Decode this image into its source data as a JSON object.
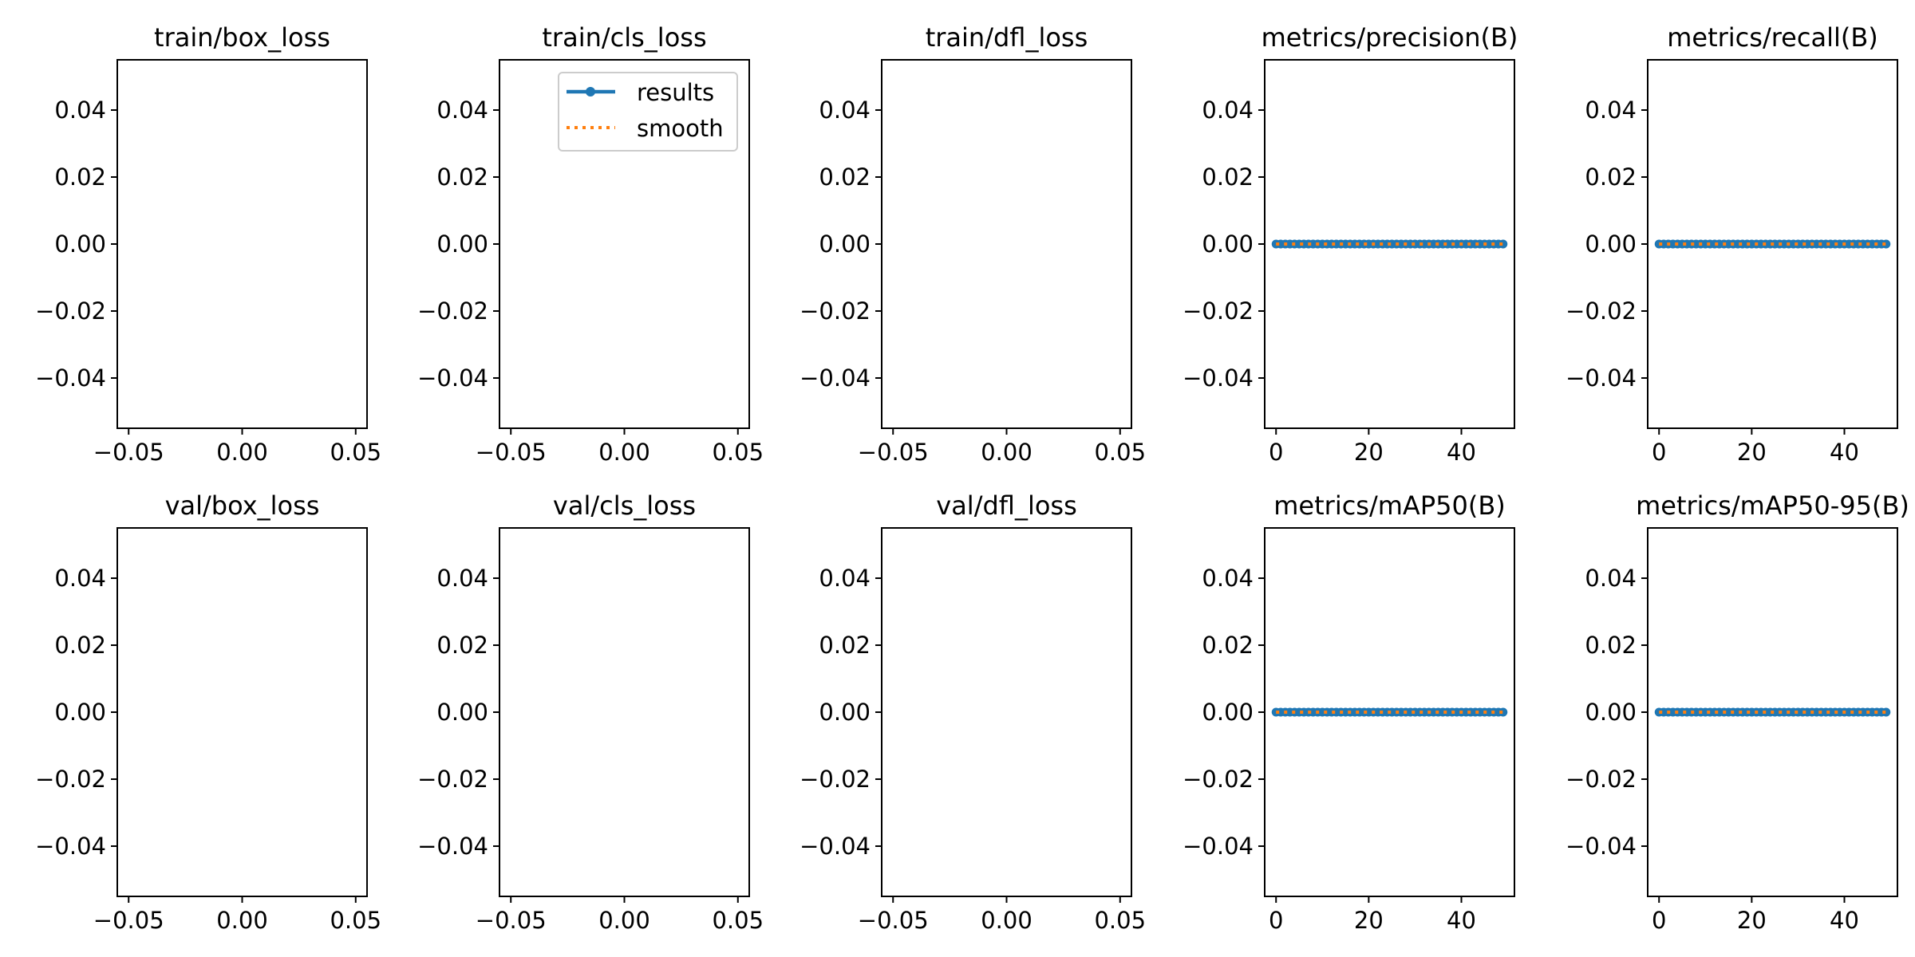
{
  "figure": {
    "panel_count": 10,
    "layout": "2 rows x 5 columns",
    "legend": {
      "location": "upper-right of panel train/cls_loss",
      "entries": [
        {
          "label": "results",
          "color": "#1f77b4",
          "style": "solid line with dot markers"
        },
        {
          "label": "smooth",
          "color": "#ff7f0e",
          "style": "dotted line"
        }
      ]
    }
  },
  "chart_data": [
    {
      "type": "line",
      "title": "train/box_loss",
      "xlim": [
        -0.055,
        0.055
      ],
      "ylim": [
        -0.055,
        0.055
      ],
      "xticks": [
        -0.05,
        0.0,
        0.05
      ],
      "xtick_labels": [
        "−0.05",
        "0.00",
        "0.05"
      ],
      "yticks": [
        0.04,
        0.02,
        0.0,
        -0.02,
        -0.04
      ],
      "ytick_labels": [
        "0.04",
        "0.02",
        "0.00",
        "−0.02",
        "−0.04"
      ],
      "series": []
    },
    {
      "type": "line",
      "title": "train/cls_loss",
      "xlim": [
        -0.055,
        0.055
      ],
      "ylim": [
        -0.055,
        0.055
      ],
      "xticks": [
        -0.05,
        0.0,
        0.05
      ],
      "xtick_labels": [
        "−0.05",
        "0.00",
        "0.05"
      ],
      "yticks": [
        0.04,
        0.02,
        0.0,
        -0.02,
        -0.04
      ],
      "ytick_labels": [
        "0.04",
        "0.02",
        "0.00",
        "−0.02",
        "−0.04"
      ],
      "series": [],
      "has_legend": true
    },
    {
      "type": "line",
      "title": "train/dfl_loss",
      "xlim": [
        -0.055,
        0.055
      ],
      "ylim": [
        -0.055,
        0.055
      ],
      "xticks": [
        -0.05,
        0.0,
        0.05
      ],
      "xtick_labels": [
        "−0.05",
        "0.00",
        "0.05"
      ],
      "yticks": [
        0.04,
        0.02,
        0.0,
        -0.02,
        -0.04
      ],
      "ytick_labels": [
        "0.04",
        "0.02",
        "0.00",
        "−0.02",
        "−0.04"
      ],
      "series": []
    },
    {
      "type": "line",
      "title": "metrics/precision(B)",
      "xlim": [
        -2.45,
        51.45
      ],
      "ylim": [
        -0.055,
        0.055
      ],
      "xticks": [
        0,
        20,
        40
      ],
      "xtick_labels": [
        "0",
        "20",
        "40"
      ],
      "yticks": [
        0.04,
        0.02,
        0.0,
        -0.02,
        -0.04
      ],
      "ytick_labels": [
        "0.04",
        "0.02",
        "0.00",
        "−0.02",
        "−0.04"
      ],
      "x": [
        0,
        1,
        2,
        3,
        4,
        5,
        6,
        7,
        8,
        9,
        10,
        11,
        12,
        13,
        14,
        15,
        16,
        17,
        18,
        19,
        20,
        21,
        22,
        23,
        24,
        25,
        26,
        27,
        28,
        29,
        30,
        31,
        32,
        33,
        34,
        35,
        36,
        37,
        38,
        39,
        40,
        41,
        42,
        43,
        44,
        45,
        46,
        47,
        48,
        49
      ],
      "series": [
        {
          "name": "results",
          "values": [
            0,
            0,
            0,
            0,
            0,
            0,
            0,
            0,
            0,
            0,
            0,
            0,
            0,
            0,
            0,
            0,
            0,
            0,
            0,
            0,
            0,
            0,
            0,
            0,
            0,
            0,
            0,
            0,
            0,
            0,
            0,
            0,
            0,
            0,
            0,
            0,
            0,
            0,
            0,
            0,
            0,
            0,
            0,
            0,
            0,
            0,
            0,
            0,
            0,
            0
          ]
        },
        {
          "name": "smooth",
          "values": [
            0,
            0,
            0,
            0,
            0,
            0,
            0,
            0,
            0,
            0,
            0,
            0,
            0,
            0,
            0,
            0,
            0,
            0,
            0,
            0,
            0,
            0,
            0,
            0,
            0,
            0,
            0,
            0,
            0,
            0,
            0,
            0,
            0,
            0,
            0,
            0,
            0,
            0,
            0,
            0,
            0,
            0,
            0,
            0,
            0,
            0,
            0,
            0,
            0,
            0
          ]
        }
      ]
    },
    {
      "type": "line",
      "title": "metrics/recall(B)",
      "xlim": [
        -2.45,
        51.45
      ],
      "ylim": [
        -0.055,
        0.055
      ],
      "xticks": [
        0,
        20,
        40
      ],
      "xtick_labels": [
        "0",
        "20",
        "40"
      ],
      "yticks": [
        0.04,
        0.02,
        0.0,
        -0.02,
        -0.04
      ],
      "ytick_labels": [
        "0.04",
        "0.02",
        "0.00",
        "−0.02",
        "−0.04"
      ],
      "x": [
        0,
        1,
        2,
        3,
        4,
        5,
        6,
        7,
        8,
        9,
        10,
        11,
        12,
        13,
        14,
        15,
        16,
        17,
        18,
        19,
        20,
        21,
        22,
        23,
        24,
        25,
        26,
        27,
        28,
        29,
        30,
        31,
        32,
        33,
        34,
        35,
        36,
        37,
        38,
        39,
        40,
        41,
        42,
        43,
        44,
        45,
        46,
        47,
        48,
        49
      ],
      "series": [
        {
          "name": "results",
          "values": [
            0,
            0,
            0,
            0,
            0,
            0,
            0,
            0,
            0,
            0,
            0,
            0,
            0,
            0,
            0,
            0,
            0,
            0,
            0,
            0,
            0,
            0,
            0,
            0,
            0,
            0,
            0,
            0,
            0,
            0,
            0,
            0,
            0,
            0,
            0,
            0,
            0,
            0,
            0,
            0,
            0,
            0,
            0,
            0,
            0,
            0,
            0,
            0,
            0,
            0
          ]
        },
        {
          "name": "smooth",
          "values": [
            0,
            0,
            0,
            0,
            0,
            0,
            0,
            0,
            0,
            0,
            0,
            0,
            0,
            0,
            0,
            0,
            0,
            0,
            0,
            0,
            0,
            0,
            0,
            0,
            0,
            0,
            0,
            0,
            0,
            0,
            0,
            0,
            0,
            0,
            0,
            0,
            0,
            0,
            0,
            0,
            0,
            0,
            0,
            0,
            0,
            0,
            0,
            0,
            0,
            0
          ]
        }
      ]
    },
    {
      "type": "line",
      "title": "val/box_loss",
      "xlim": [
        -0.055,
        0.055
      ],
      "ylim": [
        -0.055,
        0.055
      ],
      "xticks": [
        -0.05,
        0.0,
        0.05
      ],
      "xtick_labels": [
        "−0.05",
        "0.00",
        "0.05"
      ],
      "yticks": [
        0.04,
        0.02,
        0.0,
        -0.02,
        -0.04
      ],
      "ytick_labels": [
        "0.04",
        "0.02",
        "0.00",
        "−0.02",
        "−0.04"
      ],
      "series": []
    },
    {
      "type": "line",
      "title": "val/cls_loss",
      "xlim": [
        -0.055,
        0.055
      ],
      "ylim": [
        -0.055,
        0.055
      ],
      "xticks": [
        -0.05,
        0.0,
        0.05
      ],
      "xtick_labels": [
        "−0.05",
        "0.00",
        "0.05"
      ],
      "yticks": [
        0.04,
        0.02,
        0.0,
        -0.02,
        -0.04
      ],
      "ytick_labels": [
        "0.04",
        "0.02",
        "0.00",
        "−0.02",
        "−0.04"
      ],
      "series": []
    },
    {
      "type": "line",
      "title": "val/dfl_loss",
      "xlim": [
        -0.055,
        0.055
      ],
      "ylim": [
        -0.055,
        0.055
      ],
      "xticks": [
        -0.05,
        0.0,
        0.05
      ],
      "xtick_labels": [
        "−0.05",
        "0.00",
        "0.05"
      ],
      "yticks": [
        0.04,
        0.02,
        0.0,
        -0.02,
        -0.04
      ],
      "ytick_labels": [
        "0.04",
        "0.02",
        "0.00",
        "−0.02",
        "−0.04"
      ],
      "series": []
    },
    {
      "type": "line",
      "title": "metrics/mAP50(B)",
      "xlim": [
        -2.45,
        51.45
      ],
      "ylim": [
        -0.055,
        0.055
      ],
      "xticks": [
        0,
        20,
        40
      ],
      "xtick_labels": [
        "0",
        "20",
        "40"
      ],
      "yticks": [
        0.04,
        0.02,
        0.0,
        -0.02,
        -0.04
      ],
      "ytick_labels": [
        "0.04",
        "0.02",
        "0.00",
        "−0.02",
        "−0.04"
      ],
      "x": [
        0,
        1,
        2,
        3,
        4,
        5,
        6,
        7,
        8,
        9,
        10,
        11,
        12,
        13,
        14,
        15,
        16,
        17,
        18,
        19,
        20,
        21,
        22,
        23,
        24,
        25,
        26,
        27,
        28,
        29,
        30,
        31,
        32,
        33,
        34,
        35,
        36,
        37,
        38,
        39,
        40,
        41,
        42,
        43,
        44,
        45,
        46,
        47,
        48,
        49
      ],
      "series": [
        {
          "name": "results",
          "values": [
            0,
            0,
            0,
            0,
            0,
            0,
            0,
            0,
            0,
            0,
            0,
            0,
            0,
            0,
            0,
            0,
            0,
            0,
            0,
            0,
            0,
            0,
            0,
            0,
            0,
            0,
            0,
            0,
            0,
            0,
            0,
            0,
            0,
            0,
            0,
            0,
            0,
            0,
            0,
            0,
            0,
            0,
            0,
            0,
            0,
            0,
            0,
            0,
            0,
            0
          ]
        },
        {
          "name": "smooth",
          "values": [
            0,
            0,
            0,
            0,
            0,
            0,
            0,
            0,
            0,
            0,
            0,
            0,
            0,
            0,
            0,
            0,
            0,
            0,
            0,
            0,
            0,
            0,
            0,
            0,
            0,
            0,
            0,
            0,
            0,
            0,
            0,
            0,
            0,
            0,
            0,
            0,
            0,
            0,
            0,
            0,
            0,
            0,
            0,
            0,
            0,
            0,
            0,
            0,
            0,
            0
          ]
        }
      ]
    },
    {
      "type": "line",
      "title": "metrics/mAP50-95(B)",
      "xlim": [
        -2.45,
        51.45
      ],
      "ylim": [
        -0.055,
        0.055
      ],
      "xticks": [
        0,
        20,
        40
      ],
      "xtick_labels": [
        "0",
        "20",
        "40"
      ],
      "yticks": [
        0.04,
        0.02,
        0.0,
        -0.02,
        -0.04
      ],
      "ytick_labels": [
        "0.04",
        "0.02",
        "0.00",
        "−0.02",
        "−0.04"
      ],
      "x": [
        0,
        1,
        2,
        3,
        4,
        5,
        6,
        7,
        8,
        9,
        10,
        11,
        12,
        13,
        14,
        15,
        16,
        17,
        18,
        19,
        20,
        21,
        22,
        23,
        24,
        25,
        26,
        27,
        28,
        29,
        30,
        31,
        32,
        33,
        34,
        35,
        36,
        37,
        38,
        39,
        40,
        41,
        42,
        43,
        44,
        45,
        46,
        47,
        48,
        49
      ],
      "series": [
        {
          "name": "results",
          "values": [
            0,
            0,
            0,
            0,
            0,
            0,
            0,
            0,
            0,
            0,
            0,
            0,
            0,
            0,
            0,
            0,
            0,
            0,
            0,
            0,
            0,
            0,
            0,
            0,
            0,
            0,
            0,
            0,
            0,
            0,
            0,
            0,
            0,
            0,
            0,
            0,
            0,
            0,
            0,
            0,
            0,
            0,
            0,
            0,
            0,
            0,
            0,
            0,
            0,
            0
          ]
        },
        {
          "name": "smooth",
          "values": [
            0,
            0,
            0,
            0,
            0,
            0,
            0,
            0,
            0,
            0,
            0,
            0,
            0,
            0,
            0,
            0,
            0,
            0,
            0,
            0,
            0,
            0,
            0,
            0,
            0,
            0,
            0,
            0,
            0,
            0,
            0,
            0,
            0,
            0,
            0,
            0,
            0,
            0,
            0,
            0,
            0,
            0,
            0,
            0,
            0,
            0,
            0,
            0,
            0,
            0
          ]
        }
      ]
    }
  ]
}
